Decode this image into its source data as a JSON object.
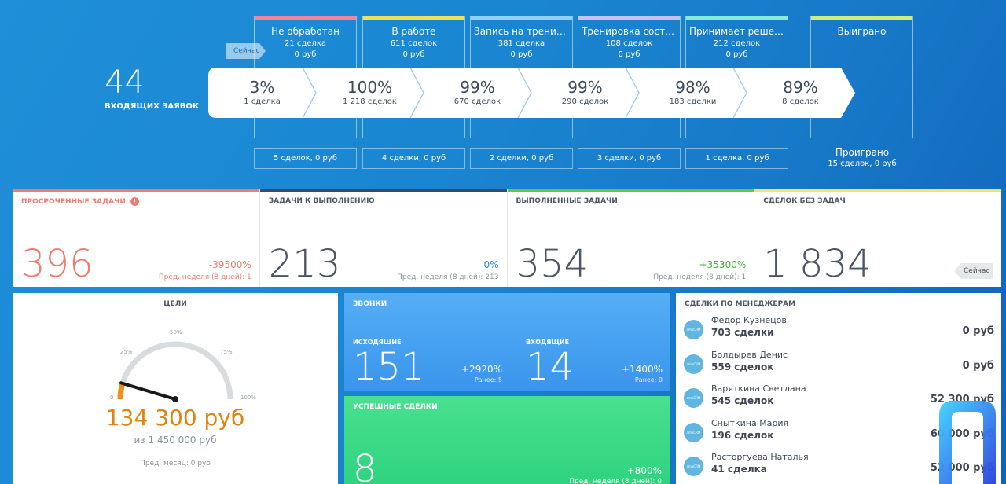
{
  "colors": {
    "accent_blue": "#1a86d2",
    "overdue": "#f07b70",
    "todo": "#3d4a5c",
    "done": "#5fc84b",
    "no_tasks": "#f4e36a",
    "goal_amount": "#e0830f"
  },
  "funnel": {
    "incoming_count": "44",
    "incoming_label": "ВХОДЯЩИХ ЗАЯВОК",
    "now_label": "Сейчас",
    "stages": [
      {
        "name": "Не обработан",
        "count": "21 сделка",
        "sum": "0 руб",
        "color": "#f0849a",
        "lost": "5 сделок, 0 руб"
      },
      {
        "name": "В работе",
        "count": "611 сделок",
        "sum": "0 руб",
        "color": "#f1de5b",
        "lost": "4 сделки, 0 руб"
      },
      {
        "name": "Запись на тренировку",
        "count": "381 сделка",
        "sum": "0 руб",
        "color": "#8fd3f2",
        "lost": "2 сделки, 0 руб"
      },
      {
        "name": "Тренировка состоялась",
        "count": "108 сделок",
        "sum": "0 руб",
        "color": "#c8c2f0",
        "lost": "3 сделки, 0 руб"
      },
      {
        "name": "Принимает решение",
        "count": "212 сделок",
        "sum": "0 руб",
        "color": "#86ead9",
        "lost": "1 сделка, 0 руб"
      },
      {
        "name": "Выиграно",
        "count": "",
        "sum": "",
        "color": "#cdee78",
        "lost": ""
      }
    ],
    "conversion": [
      {
        "pct": "3%",
        "sub": "1 сделка"
      },
      {
        "pct": "100%",
        "sub": "1 218 сделок"
      },
      {
        "pct": "99%",
        "sub": "670 сделок"
      },
      {
        "pct": "99%",
        "sub": "290 сделок"
      },
      {
        "pct": "98%",
        "sub": "183 сделки"
      },
      {
        "pct": "89%",
        "sub": "8 сделок"
      }
    ],
    "lost_title": "Проиграно",
    "lost_summary": "15 сделок, 0 руб"
  },
  "stats": [
    {
      "title": "ПРОСРОЧЕННЫЕ ЗАДАЧИ",
      "value": "396",
      "delta": "-39500%",
      "prev": "Пред. неделя (8 дней): 1",
      "color": "#f07b70",
      "value_color": "#f07b70",
      "delta_color": "#f07b70",
      "alert": "!"
    },
    {
      "title": "ЗАДАЧИ К ВЫПОЛНЕНИЮ",
      "value": "213",
      "delta": "0%",
      "prev": "Пред. неделя (8 дней): 213",
      "color": "#3d4a5c",
      "value_color": "#3d4652",
      "delta_color": "#2a8ad8"
    },
    {
      "title": "ВЫПОЛНЕННЫЕ ЗАДАЧИ",
      "value": "354",
      "delta": "+35300%",
      "prev": "Пред. неделя (8 дней): 1",
      "color": "#5fc84b",
      "value_color": "#3d4652",
      "delta_color": "#3bb33b"
    },
    {
      "title": "СДЕЛОК БЕЗ ЗАДАЧ",
      "value": "1 834",
      "now": "Сейчас",
      "color": "#f4e36a",
      "value_color": "#3d4652"
    }
  ],
  "goals": {
    "title": "ЦЕЛИ",
    "ticks": [
      "0",
      "25%",
      "50%",
      "75%",
      "100%"
    ],
    "progress": 0.0926,
    "amount": "134 300 руб",
    "of": "из 1 450 000 руб",
    "prev": "Пред. месяц: 0 руб"
  },
  "calls": {
    "title": "ЗВОНКИ",
    "outgoing": {
      "label": "ИСХОДЯЩИЕ",
      "value": "151",
      "delta": "+2920%",
      "prev": "Ранее: 5"
    },
    "incoming": {
      "label": "ВХОДЯЩИЕ",
      "value": "14",
      "delta": "+1400%",
      "prev": "Ранее: 0"
    }
  },
  "success": {
    "title": "УСПЕШНЫЕ СДЕЛКИ",
    "value": "8",
    "delta": "+800%",
    "prev": "Пред. неделя (8 дней): 0"
  },
  "managers": {
    "title": "СДЕЛКИ ПО МЕНЕДЖЕРАМ",
    "avatar_text": "amoCRM",
    "items": [
      {
        "name": "Фёдор Кузнецов",
        "count": "703 сделки",
        "sum": "0 руб"
      },
      {
        "name": "Болдырев Денис",
        "count": "559 сделок",
        "sum": "0 руб"
      },
      {
        "name": "Варяткина Светлана",
        "count": "545 сделок",
        "sum": "52 300 руб"
      },
      {
        "name": "Сныткина Мария",
        "count": "196 сделок",
        "sum": "60 000 руб"
      },
      {
        "name": "Расторгуева Наталья",
        "count": "41 сделка",
        "sum": "52 000 руб"
      }
    ]
  }
}
